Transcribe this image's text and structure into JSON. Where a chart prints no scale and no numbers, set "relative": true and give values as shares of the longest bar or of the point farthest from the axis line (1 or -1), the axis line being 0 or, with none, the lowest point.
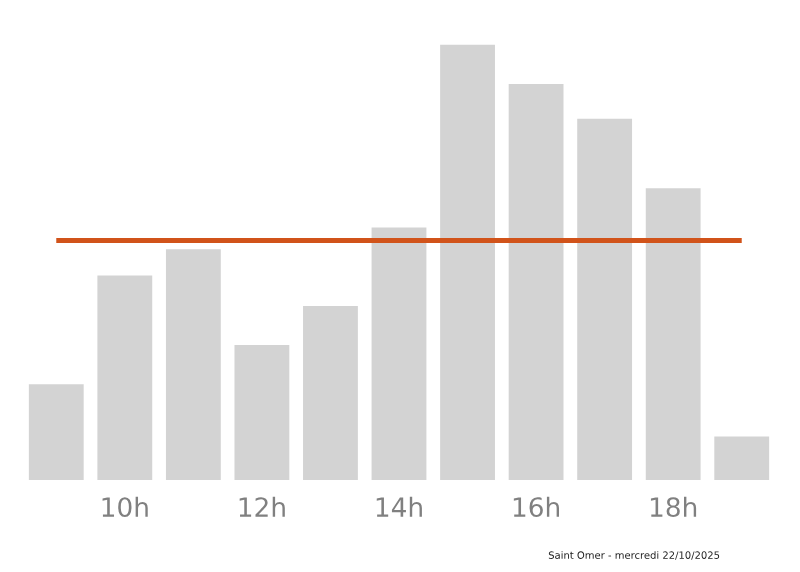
{
  "chart_data": {
    "type": "bar",
    "relative": true,
    "categories": [
      null,
      "10h",
      null,
      "12h",
      null,
      "14h",
      null,
      "16h",
      null,
      "18h",
      null
    ],
    "values": [
      0.22,
      0.47,
      0.53,
      0.31,
      0.4,
      0.58,
      1,
      0.91,
      0.83,
      0.67,
      0.1
    ],
    "color": "#d3d3d3",
    "ref_lines": [
      {
        "axis": "y",
        "value": 0.55,
        "color": "#d1531a"
      }
    ],
    "grid": false,
    "legend": false,
    "annotations": [
      "Saint Omer - mercredi 22/10/2025"
    ]
  }
}
